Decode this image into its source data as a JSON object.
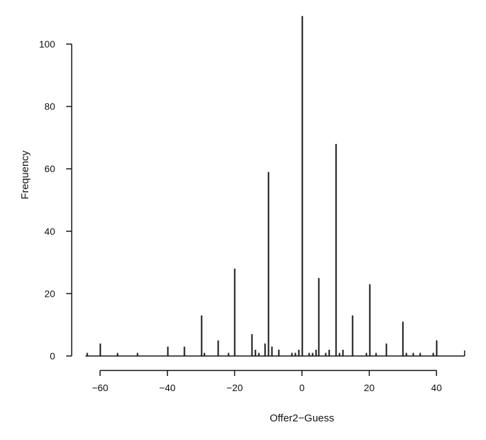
{
  "chart_data": {
    "type": "bar",
    "xlabel": "Offer2−Guess",
    "ylabel": "Frequency",
    "xlim": [
      -60,
      40
    ],
    "ylim": [
      0,
      100
    ],
    "x_ticks": [
      -60,
      -40,
      -20,
      0,
      20,
      40
    ],
    "x_tick_labels": [
      "−60",
      "−40",
      "−20",
      "0",
      "20",
      "40"
    ],
    "y_ticks": [
      0,
      20,
      40,
      60,
      80,
      100
    ],
    "y_tick_labels": [
      "0",
      "20",
      "40",
      "60",
      "80",
      "100"
    ],
    "grid": false,
    "legend": "none",
    "style": "vertical spikes",
    "colors": {
      "spike": "#111111",
      "axis": "#111111",
      "background": "#ffffff"
    },
    "x": [
      -64,
      -60,
      -55,
      -49,
      -40,
      -35,
      -30,
      -29,
      -25,
      -22,
      -20,
      -15,
      -14,
      -13,
      -11,
      -10,
      -9,
      -7,
      -3,
      -2,
      -1,
      0,
      2,
      3,
      4,
      5,
      7,
      8,
      10,
      11,
      12,
      15,
      19,
      20,
      22,
      25,
      30,
      31,
      33,
      35,
      39,
      40
    ],
    "values": [
      1,
      4,
      1,
      1,
      3,
      3,
      13,
      1,
      5,
      1,
      28,
      7,
      2,
      1,
      4,
      59,
      3,
      2,
      1,
      1,
      2,
      109,
      1,
      1,
      2,
      25,
      1,
      2,
      68,
      1,
      2,
      13,
      1,
      23,
      1,
      4,
      11,
      1,
      1,
      1,
      1,
      5
    ]
  }
}
